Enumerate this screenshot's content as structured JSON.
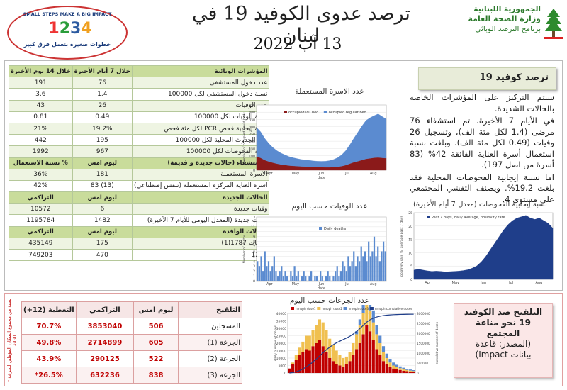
{
  "header": {
    "title": "ترصد عدوى الكوفيد 19 في لبنان",
    "date": "13 آب 2022",
    "ministry": [
      "الجمهورية اللبنانية",
      "وزارة الصحة العامة",
      "برنامج الترصد الوبائي"
    ],
    "logo_top": "SMALL STEPS MAKE A BIG IMPACT",
    "logo_nums": "1234",
    "logo_bottom": "خطوات صغيرة بتعمل فرق كبير"
  },
  "indicators_table": {
    "headers": [
      "المؤشرات الوبائية",
      "خلال 7 أيام الأخيرة",
      "خلال 14 يوم الأخيرة"
    ],
    "rows": [
      [
        "عدد دخول المستشفى",
        "76",
        "191"
      ],
      [
        "نسبة دخول المستشفى لكل 100000",
        "1.4",
        "3.6"
      ],
      [
        "عدد الوفيات",
        "26",
        "43"
      ],
      [
        "نسبة الوفيات لكل 100000",
        "0.49",
        "0.81"
      ],
      [
        "نسبة إيجابية فحص PCR لكل مئة فحص",
        "19.2%",
        "21%"
      ],
      [
        "عدد الحدوث المحلية لكل 100000",
        "195",
        "442"
      ],
      [
        "نسبة الفحوصات لكل 100000",
        "967",
        "1992"
      ]
    ],
    "beds_headers": [
      "الاستشفاء (حالات جديدة و قديمة)",
      "ليوم امس",
      "% نسبة الاستعمال"
    ],
    "beds_rows": [
      [
        "الاسرة المستعملة",
        "181",
        "36%"
      ],
      [
        "اسرة العناية المركزة المستعملة (تنفس إصطناعي)",
        "(13) 83",
        "42%"
      ]
    ],
    "cases_headers": [
      "الحالات الجديدة",
      "ليوم امس",
      "التراكمي"
    ],
    "cases_rows": [
      [
        "وفيات جديدة",
        "6",
        "10572"
      ],
      [
        "حالات جديدة (المعدل اليومي للأيام 7 الأخيرة)",
        "1482",
        "1195784"
      ]
    ],
    "travel_headers": [
      "الحالات الوافدة",
      "ليوم امس",
      "التراكمي"
    ],
    "travel_rows": [
      [
        "اصابات 1787(1)",
        "175",
        "435149"
      ],
      [
        "1214",
        "470",
        "749203"
      ]
    ]
  },
  "summary": {
    "box_title": "ترصد كوفيد 19",
    "p1": "سيتم التركيز على المؤشرات الخاصة بالحالات الشديدة.",
    "p2": "في الأيام 7 الأخيرة، تم استشفاء 76 مرضى (1.4 لكل مئة الف)، وتسجيل 26 وفيات (0.49 لكل مئة الف). وبلغت نسبة استعمال أسرة العناية الفائقة 42% (83 أسرة من اصل 197).",
    "p3": "اما نسبة إيجابية الفحوصات المحلية فقد بلغت 19.2%. ويصنف التفشي المجتمعي على مستوى 4."
  },
  "vaccination": {
    "headers": [
      "التلقيح",
      "ليوم امس",
      "التراكمي",
      "التغطية (12+)"
    ],
    "rows": [
      [
        "المسجلين",
        "506",
        "3853040",
        "70.7%"
      ],
      [
        "الجرعة (1)",
        "605",
        "2714899",
        "49.8%"
      ],
      [
        "الجرعة (2)",
        "522",
        "290125",
        "43.9%"
      ],
      [
        "الجرعة (3)",
        "838",
        "632236",
        "26.5%*"
      ]
    ],
    "note": "* نسبة من مجموع السكان المؤهلين للجرعة الثالثة",
    "box_text": [
      "التلقيح ضد الكوفيد",
      "19 نحو مناعة",
      "المجتمع",
      "(المصدر: قاعدة",
      "بيانات Impact)"
    ]
  },
  "colors": {
    "accent_green": "#c9dc9b",
    "red": "#c00000",
    "navy": "#1f3e8a",
    "dark_red": "#8b1a1a",
    "blue": "#5b8bd0"
  },
  "chart_data": [
    {
      "type": "area",
      "title": "عدد الاسرة المستعملة",
      "xlabel": "date",
      "ylabel": "number of occupied Covid beds",
      "x_ticks": [
        "Apr",
        "May",
        "Jun",
        "Jul",
        "Aug"
      ],
      "y_ticks": [
        "0",
        "50",
        "100",
        "150",
        "200",
        "250",
        "300",
        "350",
        "400",
        "450"
      ],
      "ylim": [
        0,
        450
      ],
      "series": [
        {
          "name": "occupied icu bed",
          "color": "#8b1a1a",
          "values": [
            95,
            85,
            70,
            60,
            52,
            45,
            40,
            36,
            32,
            30,
            28,
            26,
            25,
            24,
            22,
            22,
            21,
            20,
            20,
            22,
            24,
            28,
            35,
            45,
            55,
            62,
            70,
            78,
            82,
            86,
            88,
            85,
            83
          ]
        },
        {
          "name": "occupied regular bed",
          "color": "#5b8bd0",
          "values": [
            200,
            180,
            150,
            125,
            105,
            90,
            78,
            70,
            62,
            56,
            52,
            48,
            46,
            44,
            42,
            40,
            40,
            42,
            46,
            52,
            62,
            78,
            100,
            130,
            165,
            200,
            235,
            265,
            280,
            290,
            300,
            285,
            270
          ]
        }
      ]
    },
    {
      "type": "bar",
      "title": "عدد الوفيات حسب اليوم",
      "xlabel": "date",
      "ylabel": "Number of deaths",
      "x_ticks": [
        "Apr",
        "May",
        "Jun",
        "Jul",
        "Aug"
      ],
      "y_ticks": [
        "0",
        "1",
        "2",
        "3",
        "4",
        "5",
        "6",
        "7",
        "8",
        "9",
        "10",
        "11",
        "12",
        "13"
      ],
      "ylim": [
        0,
        13
      ],
      "series": [
        {
          "name": "Daily deaths",
          "color": "#5b8bd0",
          "values": [
            4,
            3,
            5,
            2,
            6,
            3,
            4,
            2,
            3,
            5,
            2,
            1,
            2,
            3,
            1,
            2,
            1,
            0,
            2,
            1,
            3,
            1,
            2,
            0,
            1,
            2,
            1,
            0,
            1,
            2,
            0,
            1,
            1,
            0,
            2,
            1,
            0,
            1,
            2,
            1,
            0,
            1,
            2,
            3,
            1,
            2,
            4,
            3,
            2,
            5,
            3,
            4,
            6,
            3,
            5,
            4,
            7,
            5,
            6,
            4,
            8,
            5,
            6,
            9,
            5,
            7,
            4,
            6,
            8,
            6
          ]
        }
      ]
    },
    {
      "type": "area",
      "title": "نسبة إيجابية الفحوصات (معدل 7 أيام الأخيرة)",
      "xlabel": "",
      "ylabel": "positivity rate %, average past 7 days",
      "x_ticks": [
        "Apr",
        "May",
        "Jun",
        "Jul",
        "Aug"
      ],
      "y_ticks": [
        "0",
        "5",
        "10",
        "15",
        "20",
        "25"
      ],
      "ylim": [
        0,
        25
      ],
      "series": [
        {
          "name": "Past 7 days, daily average, positivity rate",
          "color": "#1f3e8a",
          "values": [
            3.5,
            3.8,
            3.5,
            3.2,
            3.0,
            3.1,
            3.0,
            2.8,
            2.9,
            3.0,
            3.1,
            3.3,
            3.6,
            4.2,
            5.0,
            6.5,
            8.5,
            11,
            13.5,
            16,
            18.5,
            20.5,
            22,
            23,
            23.5,
            24,
            23,
            22.5,
            23,
            22,
            21,
            19.2
          ]
        }
      ]
    },
    {
      "type": "bar",
      "title": "عدد الجرعات حسب اليوم",
      "xlabel": "",
      "ylabel": "daily number of doses",
      "y2label": "cumulative number of doses",
      "y_ticks": [
        "0",
        "5000",
        "10000",
        "15000",
        "20000",
        "25000",
        "30000",
        "35000",
        "40000"
      ],
      "y2_ticks": [
        "0",
        "500000",
        "1000000",
        "1500000",
        "2000000",
        "2500000",
        "3000000"
      ],
      "ylim": [
        0,
        40000
      ],
      "y2lim": [
        0,
        3000000
      ],
      "series": [
        {
          "name": "nmoph dose1",
          "color": "#c00000",
          "values": [
            3000,
            6000,
            9000,
            12000,
            14000,
            16000,
            15000,
            18000,
            20000,
            22000,
            18000,
            14000,
            10000,
            8000,
            6000,
            5000,
            4000,
            6000,
            8000,
            12000,
            16000,
            20000,
            26000,
            32000,
            28000,
            22000,
            16000,
            12000,
            8000,
            6000,
            4000,
            3000,
            2500,
            2000,
            1500,
            1200,
            1000,
            800
          ]
        },
        {
          "name": "nmoph dose2",
          "color": "#f0c050",
          "values": [
            0,
            1000,
            3000,
            5000,
            7000,
            9000,
            10000,
            11000,
            12000,
            14000,
            16000,
            15000,
            13000,
            11000,
            9000,
            7000,
            6000,
            5000,
            6000,
            8000,
            10000,
            12000,
            14000,
            16000,
            14000,
            12000,
            10000,
            8000,
            6000,
            4000,
            3000,
            2000,
            1500,
            1200,
            1000,
            800,
            600,
            500
          ]
        },
        {
          "name": "nmoph dose3",
          "color": "#5b8bd0",
          "values": [
            0,
            0,
            0,
            0,
            0,
            0,
            0,
            0,
            0,
            0,
            0,
            0,
            0,
            0,
            0,
            0,
            0,
            0,
            0,
            0,
            2000,
            4000,
            8000,
            12000,
            10000,
            8000,
            6000,
            5000,
            4000,
            3000,
            2500,
            2000,
            1500,
            1200,
            1000,
            800,
            700,
            600
          ]
        },
        {
          "name": "nmoph cumulative doses",
          "color": "#1f3e8a",
          "axis": "y2",
          "values": [
            0,
            20000,
            60000,
            120000,
            200000,
            300000,
            420000,
            560000,
            700000,
            860000,
            1020000,
            1170000,
            1300000,
            1420000,
            1520000,
            1600000,
            1680000,
            1760000,
            1850000,
            1960000,
            2090000,
            2240000,
            2400000,
            2560000,
            2680000,
            2760000,
            2820000,
            2860000,
            2890000,
            2910000,
            2925000,
            2935000,
            2942000,
            2948000,
            2952000,
            2955000,
            2957000,
            2958000
          ]
        }
      ]
    }
  ]
}
